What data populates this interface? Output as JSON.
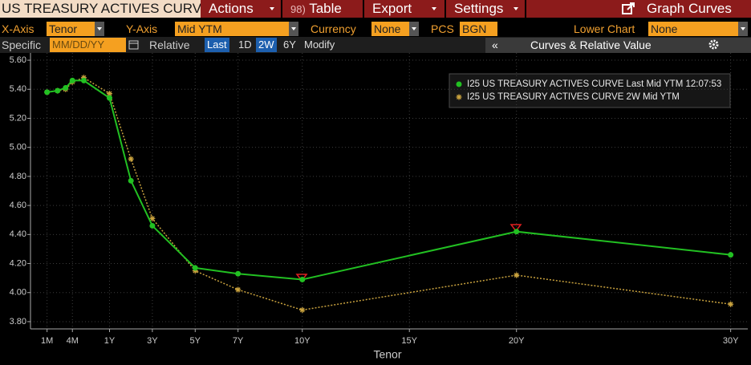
{
  "toolbar": {
    "title": "US TREASURY ACTIVES CURV",
    "menus": [
      {
        "number": "",
        "label": "Actions"
      },
      {
        "number": "98)",
        "label": "Table"
      },
      {
        "number": "",
        "label": "Export"
      },
      {
        "number": "",
        "label": "Settings"
      }
    ],
    "graph_curves": "Graph Curves"
  },
  "controls": {
    "row1": [
      {
        "label": "X-Axis",
        "value": "Tenor"
      },
      {
        "label": "Y-Axis",
        "value": "Mid YTM"
      },
      {
        "label": "Currency",
        "value": "None"
      },
      {
        "label": "PCS",
        "value": "BGN"
      },
      {
        "label": "Lower Chart",
        "value": "None"
      }
    ],
    "specific": "Specific",
    "date_placeholder": "MM/DD/YY",
    "relative": "Relative",
    "buttons": [
      {
        "label": "Last",
        "active": true
      },
      {
        "label": "1D",
        "active": false
      },
      {
        "label": "2W",
        "active": true
      },
      {
        "label": "6Y",
        "active": false
      },
      {
        "label": "Modify",
        "active": false
      }
    ],
    "collapse": "«",
    "panel_title": "Curves & Relative Value"
  },
  "chart_data": {
    "type": "line",
    "x_label": "Tenor",
    "x": [
      0.0833,
      0.1667,
      0.25,
      0.3333,
      0.5,
      1,
      2,
      3,
      5,
      7,
      10,
      20,
      30
    ],
    "series": [
      {
        "name": "I25 US TREASURY ACTIVES CURVE Last Mid YTM 12:07:53",
        "color": "#22c022",
        "marker": "circle",
        "dashed": false,
        "values": [
          5.38,
          5.39,
          5.41,
          5.46,
          5.46,
          5.34,
          4.77,
          4.46,
          4.17,
          4.13,
          4.09,
          4.42,
          4.26
        ]
      },
      {
        "name": "I25 US TREASURY ACTIVES CURVE 2W Mid YTM",
        "color": "#c9a23e",
        "marker": "asterisk",
        "dashed": true,
        "values": [
          5.38,
          5.39,
          5.4,
          5.45,
          5.48,
          5.37,
          4.92,
          4.51,
          4.15,
          4.02,
          3.88,
          4.12,
          3.92
        ]
      }
    ],
    "xlim": [
      0.01,
      30.8
    ],
    "xticks": [
      {
        "value": 0.0833,
        "label": "1M"
      },
      {
        "value": 0.3333,
        "label": "4M"
      },
      {
        "value": 1,
        "label": "1Y"
      },
      {
        "value": 3,
        "label": "3Y"
      },
      {
        "value": 5,
        "label": "5Y"
      },
      {
        "value": 7,
        "label": "7Y"
      },
      {
        "value": 10,
        "label": "10Y"
      },
      {
        "value": 15,
        "label": "15Y"
      },
      {
        "value": 20,
        "label": "20Y"
      },
      {
        "value": 30,
        "label": "30Y"
      }
    ],
    "ylim": [
      3.75,
      5.65
    ],
    "yticks": [
      {
        "value": 3.8,
        "label": "3.80"
      },
      {
        "value": 4.0,
        "label": "4.00"
      },
      {
        "value": 4.2,
        "label": "4.20"
      },
      {
        "value": 4.4,
        "label": "4.40"
      },
      {
        "value": 4.6,
        "label": "4.60"
      },
      {
        "value": 4.8,
        "label": "4.80"
      },
      {
        "value": 5.0,
        "label": "5.00"
      },
      {
        "value": 5.2,
        "label": "5.20"
      },
      {
        "value": 5.4,
        "label": "5.40"
      },
      {
        "value": 5.6,
        "label": "5.60"
      }
    ],
    "grid": true
  }
}
